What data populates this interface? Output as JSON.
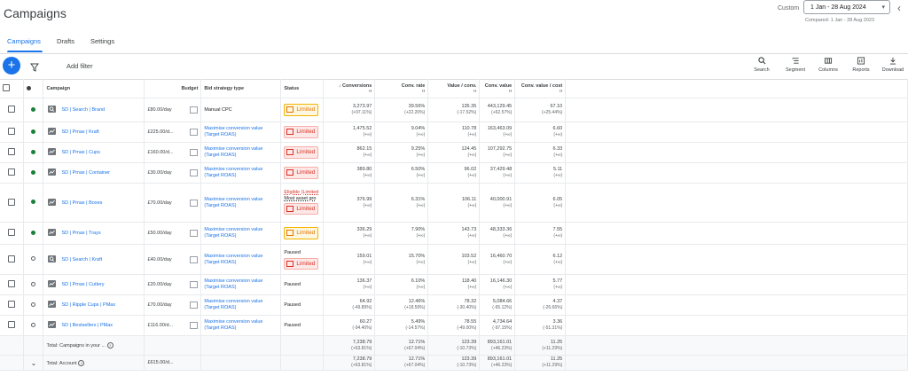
{
  "header": {
    "title": "Campaigns",
    "custom_label": "Custom",
    "date_range": "1 Jan - 28 Aug 2024",
    "compared": "Compared: 1 Jan - 28 Aug 2023"
  },
  "tabs": [
    {
      "label": "Campaigns",
      "active": true
    },
    {
      "label": "Drafts",
      "active": false
    },
    {
      "label": "Settings",
      "active": false
    }
  ],
  "toolbar": {
    "add_filter": "Add filter",
    "tools": [
      {
        "label": "Search",
        "icon": "search-icon"
      },
      {
        "label": "Segment",
        "icon": "segment-icon"
      },
      {
        "label": "Columns",
        "icon": "columns-icon"
      },
      {
        "label": "Reports",
        "icon": "reports-icon"
      },
      {
        "label": "Download",
        "icon": "download-icon"
      }
    ]
  },
  "columns": {
    "campaign": "Campaign",
    "budget": "Budget",
    "bid_strategy": "Bid strategy type",
    "status": "Status",
    "conversions": "Conversions",
    "conv_rate": "Conv. rate",
    "value_conv": "Value / conv.",
    "conv_value": "Conv. value",
    "conv_value_cost": "Conv. value / cost"
  },
  "rows": [
    {
      "name": "SD | Search | Brand",
      "type": "search",
      "active": true,
      "budget": "£80.00/day",
      "bid": "Manual CPC",
      "bid_link": false,
      "status": [
        "Limited"
      ],
      "status_color": "orange",
      "conversions": "3,273.97",
      "conversions_chg": "(+97.11%)",
      "conv_rate": "39.56%",
      "conv_rate_chg": "(+22.20%)",
      "value_conv": "135.35",
      "value_conv_chg": "(-17.52%)",
      "conv_value": "443,129.45",
      "conv_value_chg": "(+62.57%)",
      "roas": "67.10",
      "roas_chg": "(+25.44%)"
    },
    {
      "name": "SD | Pmax | Kraft",
      "type": "pmax",
      "active": true,
      "budget": "£225.00/d...",
      "bid": "Maximise conversion value (Target ROAS)",
      "bid_link": true,
      "status": [
        "Limited"
      ],
      "status_color": "red",
      "conversions": "1,475.52",
      "conversions_chg": "(+∞)",
      "conv_rate": "9.04%",
      "conv_rate_chg": "(+∞)",
      "value_conv": "110.78",
      "value_conv_chg": "(+∞)",
      "conv_value": "163,463.09",
      "conv_value_chg": "(+∞)",
      "roas": "6.60",
      "roas_chg": "(+∞)"
    },
    {
      "name": "SD | Pmax | Cups",
      "type": "pmax",
      "active": true,
      "budget": "£160.00/d...",
      "bid": "Maximise conversion value (Target ROAS)",
      "bid_link": true,
      "status": [
        "Limited"
      ],
      "status_color": "red",
      "conversions": "862.15",
      "conversions_chg": "(+∞)",
      "conv_rate": "9.25%",
      "conv_rate_chg": "(+∞)",
      "value_conv": "124.45",
      "value_conv_chg": "(+∞)",
      "conv_value": "107,292.75",
      "conv_value_chg": "(+∞)",
      "roas": "6.33",
      "roas_chg": "(+∞)"
    },
    {
      "name": "SD | Pmax | Container",
      "type": "pmax",
      "active": true,
      "budget": "£30.00/day",
      "bid": "Maximise conversion value (Target ROAS)",
      "bid_link": true,
      "status": [
        "Limited"
      ],
      "status_color": "red",
      "conversions": "389.80",
      "conversions_chg": "(+∞)",
      "conv_rate": "6.50%",
      "conv_rate_chg": "(+∞)",
      "value_conv": "96.02",
      "value_conv_chg": "(+∞)",
      "conv_value": "37,429.48",
      "conv_value_chg": "(+∞)",
      "roas": "5.11",
      "roas_chg": "(+∞)"
    },
    {
      "name": "SD | Pmax | Boxes",
      "type": "pmax",
      "active": true,
      "budget": "£70.00/day",
      "bid": "Maximise conversion value (Target ROAS)",
      "bid_link": true,
      "status": [
        "Eligible (Limited",
        "Most asset gro",
        "Limited"
      ],
      "status_color": "red",
      "conversions": "376.99",
      "conversions_chg": "(+∞)",
      "conv_rate": "6.31%",
      "conv_rate_chg": "(+∞)",
      "value_conv": "106.11",
      "value_conv_chg": "(+∞)",
      "conv_value": "40,000.91",
      "conv_value_chg": "(+∞)",
      "roas": "6.05",
      "roas_chg": "(+∞)"
    },
    {
      "name": "SD | Pmax | Trays",
      "type": "pmax",
      "active": true,
      "budget": "£50.00/day",
      "bid": "Maximise conversion value (Target ROAS)",
      "bid_link": true,
      "status": [
        "Limited"
      ],
      "status_color": "orange",
      "conversions": "336.29",
      "conversions_chg": "(+∞)",
      "conv_rate": "7.90%",
      "conv_rate_chg": "(+∞)",
      "value_conv": "143.73",
      "value_conv_chg": "(+∞)",
      "conv_value": "48,333.36",
      "conv_value_chg": "(+∞)",
      "roas": "7.55",
      "roas_chg": "(+∞)"
    },
    {
      "name": "SD | Search | Kraft",
      "type": "search",
      "active": false,
      "budget": "£40.00/day",
      "bid": "Maximise conversion value (Target ROAS)",
      "bid_link": true,
      "status": [
        "Paused",
        "Limited"
      ],
      "status_color": "red",
      "conversions": "159.01",
      "conversions_chg": "(+∞)",
      "conv_rate": "15.70%",
      "conv_rate_chg": "(+∞)",
      "value_conv": "103.52",
      "value_conv_chg": "(+∞)",
      "conv_value": "16,460.70",
      "conv_value_chg": "(+∞)",
      "roas": "6.12",
      "roas_chg": "(+∞)"
    },
    {
      "name": "SD | Pmax | Cutlery",
      "type": "pmax",
      "active": false,
      "budget": "£20.00/day",
      "bid": "Maximise conversion value (Target ROAS)",
      "bid_link": true,
      "status": [
        "Paused"
      ],
      "status_color": "none",
      "conversions": "136.37",
      "conversions_chg": "(+∞)",
      "conv_rate": "6.10%",
      "conv_rate_chg": "(+∞)",
      "value_conv": "118.40",
      "value_conv_chg": "(+∞)",
      "conv_value": "16,146.30",
      "conv_value_chg": "(+∞)",
      "roas": "5.77",
      "roas_chg": "(+∞)"
    },
    {
      "name": "SD | Ripple Cups | PMax",
      "type": "pmax",
      "active": false,
      "budget": "£70.00/day",
      "bid": "Maximise conversion value (Target ROAS)",
      "bid_link": true,
      "status": [
        "Paused"
      ],
      "status_color": "none",
      "conversions": "64.92",
      "conversions_chg": "(-49.89%)",
      "conv_rate": "12.46%",
      "conv_rate_chg": "(+18.59%)",
      "value_conv": "78.32",
      "value_conv_chg": "(-30.40%)",
      "conv_value": "5,084.66",
      "conv_value_chg": "(-65.12%)",
      "roas": "4.37",
      "roas_chg": "(-26.66%)"
    },
    {
      "name": "SD | Bestsellers | PMax",
      "type": "pmax",
      "active": false,
      "budget": "£116.00/d...",
      "bid": "Maximise conversion value (Target ROAS)",
      "bid_link": true,
      "status": [
        "Paused"
      ],
      "status_color": "none",
      "conversions": "60.27",
      "conversions_chg": "(-94.40%)",
      "conv_rate": "5.49%",
      "conv_rate_chg": "(-14.57%)",
      "value_conv": "78.55",
      "value_conv_chg": "(-49.00%)",
      "conv_value": "4,734.64",
      "conv_value_chg": "(-97.15%)",
      "roas": "3.36",
      "roas_chg": "(-51.31%)"
    }
  ],
  "totals": [
    {
      "label": "Total: Campaigns in your ...",
      "budget": "",
      "conversions": "7,238.79",
      "conversions_chg": "(+63.81%)",
      "conv_rate": "12.71%",
      "conv_rate_chg": "(+67.04%)",
      "value_conv": "123.39",
      "value_conv_chg": "(-10.73%)",
      "conv_value": "893,161.01",
      "conv_value_chg": "(+46.23%)",
      "roas": "11.25",
      "roas_chg": "(+11.29%)"
    },
    {
      "label": "Total: Account",
      "budget": "£615.00/d...",
      "conversions": "7,238.79",
      "conversions_chg": "(+63.81%)",
      "conv_rate": "12.71%",
      "conv_rate_chg": "(+67.04%)",
      "value_conv": "123.39",
      "value_conv_chg": "(-10.73%)",
      "conv_value": "893,161.01",
      "conv_value_chg": "(+46.23%)",
      "roas": "11.25",
      "roas_chg": "(+11.29%)"
    }
  ],
  "colors": {
    "accent": "#1a73e8",
    "active_dot": "#188038",
    "limited_orange": "#e37400",
    "limited_red": "#d93025"
  }
}
